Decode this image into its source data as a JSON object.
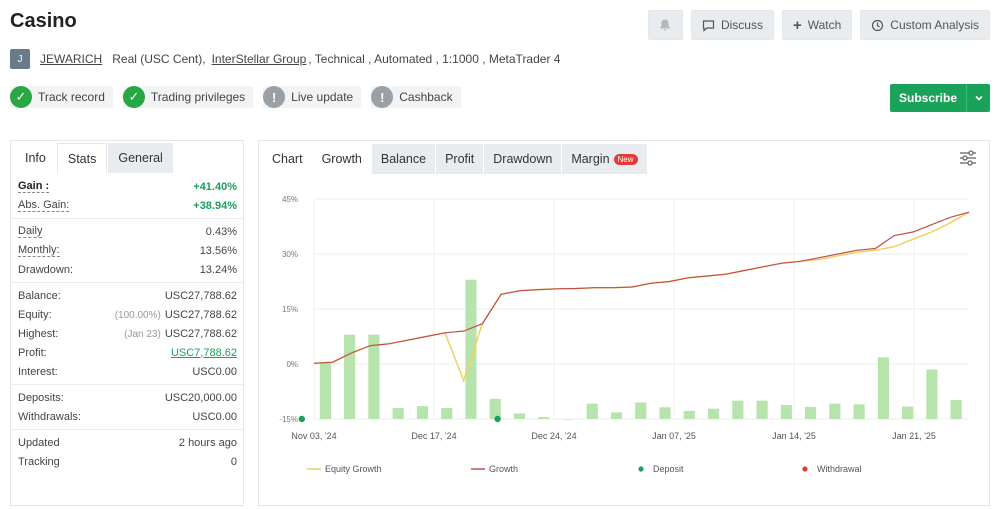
{
  "title": "Casino",
  "actions": {
    "discuss": "Discuss",
    "watch": "Watch",
    "custom_analysis": "Custom Analysis"
  },
  "account": {
    "avatar_letter": "J",
    "username": "JEWARICH",
    "type": "Real (USC Cent),",
    "broker": "InterStellar Group",
    "details": ", Technical , Automated , 1:1000 , MetaTrader 4"
  },
  "badges": [
    {
      "label": "Track record",
      "icon": "check-icon"
    },
    {
      "label": "Trading privileges",
      "icon": "check-icon"
    },
    {
      "label": "Live update",
      "icon": "exclamation-icon"
    },
    {
      "label": "Cashback",
      "icon": "exclamation-icon"
    }
  ],
  "subscribe_label": "Subscribe",
  "left_tabs": [
    "Info",
    "Stats",
    "General"
  ],
  "stats": {
    "gain_label": "Gain :",
    "gain": "+41.40%",
    "abs_gain_label": "Abs. Gain:",
    "abs_gain": "+38.94%",
    "daily_label": "Daily",
    "daily": "0.43%",
    "monthly_label": "Monthly:",
    "monthly": "13.56%",
    "drawdown_label": "Drawdown:",
    "drawdown": "13.24%",
    "balance_label": "Balance:",
    "balance": "USC27,788.62",
    "equity_label": "Equity:",
    "equity_sub": "(100.00%)",
    "equity": "USC27,788.62",
    "highest_label": "Highest:",
    "highest_sub": "(Jan 23)",
    "highest": "USC27,788.62",
    "profit_label": "Profit:",
    "profit": "USC7,788.62",
    "interest_label": "Interest:",
    "interest": "USC0.00",
    "deposits_label": "Deposits:",
    "deposits": "USC20,000.00",
    "withdrawals_label": "Withdrawals:",
    "withdrawals": "USC0.00",
    "updated_label": "Updated",
    "updated": "2 hours ago",
    "tracking_label": "Tracking",
    "tracking": "0"
  },
  "chart_tabs": [
    "Chart",
    "Growth",
    "Balance",
    "Profit",
    "Drawdown",
    "Margin"
  ],
  "new_badge": "New",
  "colors": {
    "accent": "#1aa15a",
    "equity": "#f0d060",
    "growth": "#c0504d",
    "bar": "#b7e3ad",
    "deposit": "#1aa15a",
    "withdrawal": "#e53935"
  },
  "chart_data": {
    "type": "line",
    "ylim": [
      -15,
      45
    ],
    "y_ticks": [
      "45%",
      "30%",
      "15%",
      "0%",
      "-15%"
    ],
    "x_ticks": [
      "Nov 03, '24",
      "Dec 17, '24",
      "Dec 24, '24",
      "Jan 07, '25",
      "Jan 14, '25",
      "Jan 21, '25"
    ],
    "legend": [
      "Equity Growth",
      "Growth",
      "Deposit",
      "Withdrawal"
    ],
    "growth": [
      0.2,
      0.5,
      3,
      5,
      5.5,
      6.5,
      7.5,
      8.5,
      9,
      11,
      19,
      20,
      20.3,
      20.5,
      20.6,
      20.8,
      20.8,
      21,
      22,
      22.5,
      23.5,
      24,
      24.5,
      25.5,
      26.5,
      27.5,
      28,
      29,
      30,
      31,
      31.5,
      35,
      36,
      38,
      40,
      41.4
    ],
    "equity": [
      0.2,
      0.5,
      3,
      5,
      5.5,
      6.5,
      7.5,
      8.5,
      -4.5,
      11,
      19,
      20,
      20.3,
      20.5,
      20.6,
      20.8,
      20.8,
      21,
      22,
      22.5,
      23.5,
      24,
      24.5,
      25.5,
      26.5,
      27.5,
      28,
      28.5,
      29.5,
      30.5,
      31,
      32,
      34,
      36,
      38.5,
      41.4
    ],
    "bars": [
      15.5,
      23,
      23,
      3,
      3.5,
      3,
      38,
      5.5,
      1.5,
      0.5,
      0,
      4.2,
      1.8,
      4.5,
      3.2,
      2.2,
      2.8,
      5,
      5,
      3.8,
      3.3,
      4.2,
      4,
      16.8,
      3.4,
      13.5,
      5.2
    ],
    "deposits": [
      0,
      7
    ]
  }
}
